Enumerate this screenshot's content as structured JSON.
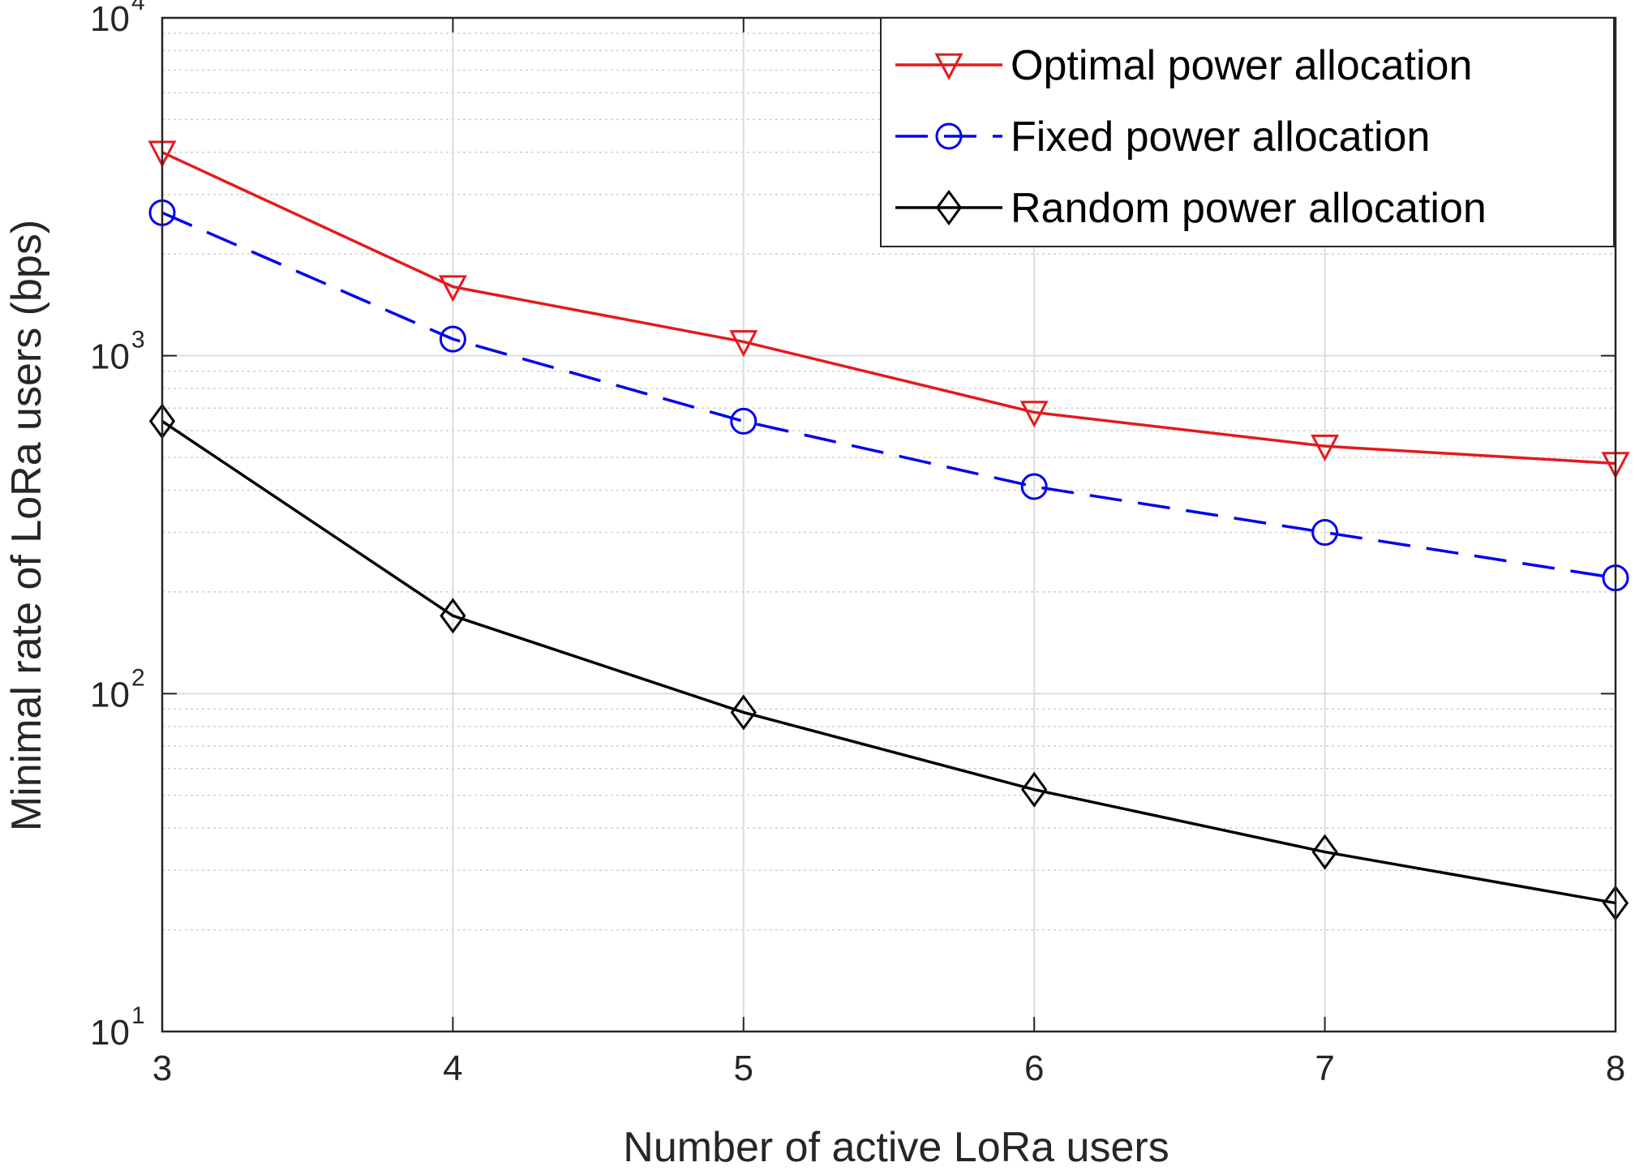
{
  "chart_data": {
    "type": "line",
    "xlabel": "Number of active LoRa users",
    "ylabel": "Minimal rate of LoRa users (bps)",
    "x": [
      3,
      4,
      5,
      6,
      7,
      8
    ],
    "xlim": [
      3,
      8
    ],
    "ylim": [
      10,
      10000
    ],
    "yscale": "log",
    "x_ticks": [
      "3",
      "4",
      "5",
      "6",
      "7",
      "8"
    ],
    "y_ticks": [
      {
        "base": "10",
        "exp": "1",
        "value": 10
      },
      {
        "base": "10",
        "exp": "2",
        "value": 100
      },
      {
        "base": "10",
        "exp": "3",
        "value": 1000
      },
      {
        "base": "10",
        "exp": "4",
        "value": 10000
      }
    ],
    "grid": true,
    "minor_grid": true,
    "legend_position": "top-right",
    "series": [
      {
        "name": "Optimal power allocation",
        "values": [
          4000,
          1600,
          1100,
          680,
          540,
          480
        ],
        "color": "#e41a1c",
        "marker": "triangle-down",
        "dash": "solid"
      },
      {
        "name": "Fixed power allocation",
        "values": [
          2650,
          1120,
          640,
          410,
          300,
          220
        ],
        "color": "#0000ee",
        "marker": "circle",
        "dash": "dashed"
      },
      {
        "name": "Random power allocation",
        "values": [
          640,
          170,
          88,
          52,
          34,
          24
        ],
        "color": "#000000",
        "marker": "diamond",
        "dash": "solid"
      }
    ]
  }
}
